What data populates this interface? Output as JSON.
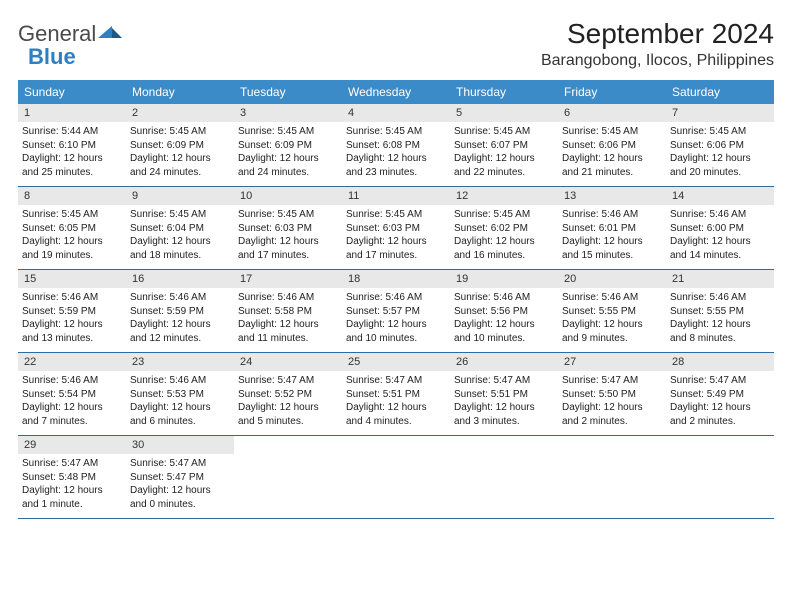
{
  "logo": {
    "text1": "General",
    "text2": "Blue"
  },
  "title": "September 2024",
  "location": "Barangobong, Ilocos, Philippines",
  "colors": {
    "header_bg": "#3b8bc8",
    "header_text": "#ffffff",
    "daynum_bg": "#e8e8e8",
    "week_border": "#2f6aa0",
    "logo_gray": "#4a4a4a",
    "logo_blue": "#2f80c2"
  },
  "weekdays": [
    "Sunday",
    "Monday",
    "Tuesday",
    "Wednesday",
    "Thursday",
    "Friday",
    "Saturday"
  ],
  "weeks": [
    [
      {
        "n": "1",
        "sr": "5:44 AM",
        "ss": "6:10 PM",
        "dl": "12 hours and 25 minutes."
      },
      {
        "n": "2",
        "sr": "5:45 AM",
        "ss": "6:09 PM",
        "dl": "12 hours and 24 minutes."
      },
      {
        "n": "3",
        "sr": "5:45 AM",
        "ss": "6:09 PM",
        "dl": "12 hours and 24 minutes."
      },
      {
        "n": "4",
        "sr": "5:45 AM",
        "ss": "6:08 PM",
        "dl": "12 hours and 23 minutes."
      },
      {
        "n": "5",
        "sr": "5:45 AM",
        "ss": "6:07 PM",
        "dl": "12 hours and 22 minutes."
      },
      {
        "n": "6",
        "sr": "5:45 AM",
        "ss": "6:06 PM",
        "dl": "12 hours and 21 minutes."
      },
      {
        "n": "7",
        "sr": "5:45 AM",
        "ss": "6:06 PM",
        "dl": "12 hours and 20 minutes."
      }
    ],
    [
      {
        "n": "8",
        "sr": "5:45 AM",
        "ss": "6:05 PM",
        "dl": "12 hours and 19 minutes."
      },
      {
        "n": "9",
        "sr": "5:45 AM",
        "ss": "6:04 PM",
        "dl": "12 hours and 18 minutes."
      },
      {
        "n": "10",
        "sr": "5:45 AM",
        "ss": "6:03 PM",
        "dl": "12 hours and 17 minutes."
      },
      {
        "n": "11",
        "sr": "5:45 AM",
        "ss": "6:03 PM",
        "dl": "12 hours and 17 minutes."
      },
      {
        "n": "12",
        "sr": "5:45 AM",
        "ss": "6:02 PM",
        "dl": "12 hours and 16 minutes."
      },
      {
        "n": "13",
        "sr": "5:46 AM",
        "ss": "6:01 PM",
        "dl": "12 hours and 15 minutes."
      },
      {
        "n": "14",
        "sr": "5:46 AM",
        "ss": "6:00 PM",
        "dl": "12 hours and 14 minutes."
      }
    ],
    [
      {
        "n": "15",
        "sr": "5:46 AM",
        "ss": "5:59 PM",
        "dl": "12 hours and 13 minutes."
      },
      {
        "n": "16",
        "sr": "5:46 AM",
        "ss": "5:59 PM",
        "dl": "12 hours and 12 minutes."
      },
      {
        "n": "17",
        "sr": "5:46 AM",
        "ss": "5:58 PM",
        "dl": "12 hours and 11 minutes."
      },
      {
        "n": "18",
        "sr": "5:46 AM",
        "ss": "5:57 PM",
        "dl": "12 hours and 10 minutes."
      },
      {
        "n": "19",
        "sr": "5:46 AM",
        "ss": "5:56 PM",
        "dl": "12 hours and 10 minutes."
      },
      {
        "n": "20",
        "sr": "5:46 AM",
        "ss": "5:55 PM",
        "dl": "12 hours and 9 minutes."
      },
      {
        "n": "21",
        "sr": "5:46 AM",
        "ss": "5:55 PM",
        "dl": "12 hours and 8 minutes."
      }
    ],
    [
      {
        "n": "22",
        "sr": "5:46 AM",
        "ss": "5:54 PM",
        "dl": "12 hours and 7 minutes."
      },
      {
        "n": "23",
        "sr": "5:46 AM",
        "ss": "5:53 PM",
        "dl": "12 hours and 6 minutes."
      },
      {
        "n": "24",
        "sr": "5:47 AM",
        "ss": "5:52 PM",
        "dl": "12 hours and 5 minutes."
      },
      {
        "n": "25",
        "sr": "5:47 AM",
        "ss": "5:51 PM",
        "dl": "12 hours and 4 minutes."
      },
      {
        "n": "26",
        "sr": "5:47 AM",
        "ss": "5:51 PM",
        "dl": "12 hours and 3 minutes."
      },
      {
        "n": "27",
        "sr": "5:47 AM",
        "ss": "5:50 PM",
        "dl": "12 hours and 2 minutes."
      },
      {
        "n": "28",
        "sr": "5:47 AM",
        "ss": "5:49 PM",
        "dl": "12 hours and 2 minutes."
      }
    ],
    [
      {
        "n": "29",
        "sr": "5:47 AM",
        "ss": "5:48 PM",
        "dl": "12 hours and 1 minute."
      },
      {
        "n": "30",
        "sr": "5:47 AM",
        "ss": "5:47 PM",
        "dl": "12 hours and 0 minutes."
      },
      null,
      null,
      null,
      null,
      null
    ]
  ],
  "labels": {
    "sunrise": "Sunrise: ",
    "sunset": "Sunset: ",
    "daylight": "Daylight: "
  }
}
